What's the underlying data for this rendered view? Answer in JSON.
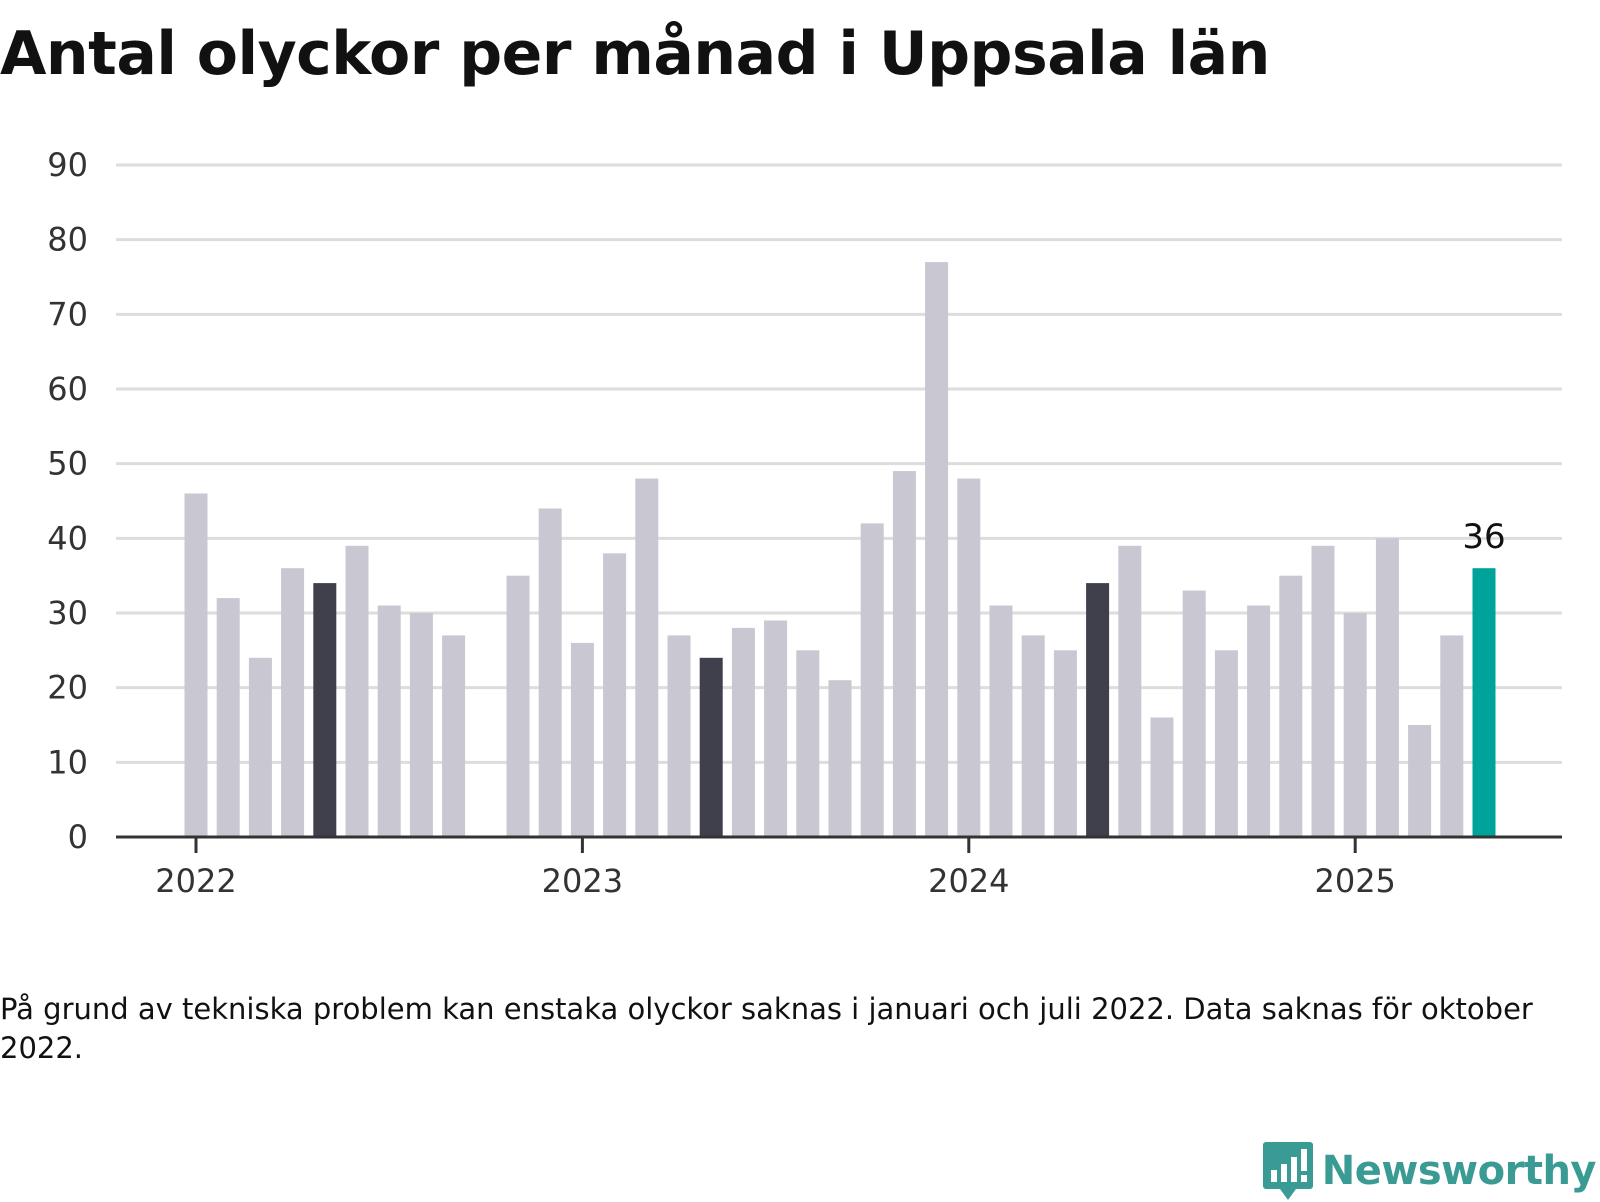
{
  "title": "Antal olyckor per månad i Uppsala län",
  "footnote": "På grund av tekniska problem kan enstaka olyckor saknas i januari och juli 2022. Data saknas för oktober 2022.",
  "brand": {
    "name": "Newsworthy",
    "icon": "bar-chart-speech-bubble-icon"
  },
  "colors": {
    "bar_default": "#c8c7d2",
    "bar_highlight": "#403f4c",
    "bar_latest": "#00a39a",
    "gridline": "#dddddd",
    "axis": "#333333",
    "brand": "#3a9a94"
  },
  "chart_data": {
    "type": "bar",
    "title": "Antal olyckor per månad i Uppsala län",
    "xlabel": "",
    "ylabel": "",
    "ylim": [
      0,
      90
    ],
    "yticks": [
      0,
      10,
      20,
      30,
      40,
      50,
      60,
      70,
      80,
      90
    ],
    "xticks": [
      "2022",
      "2023",
      "2024",
      "2025"
    ],
    "grid": true,
    "legend": "none",
    "categories": [
      "2022-01",
      "2022-02",
      "2022-03",
      "2022-04",
      "2022-05",
      "2022-06",
      "2022-07",
      "2022-08",
      "2022-09",
      "2022-10",
      "2022-11",
      "2022-12",
      "2023-01",
      "2023-02",
      "2023-03",
      "2023-04",
      "2023-05",
      "2023-06",
      "2023-07",
      "2023-08",
      "2023-09",
      "2023-10",
      "2023-11",
      "2023-12",
      "2024-01",
      "2024-02",
      "2024-03",
      "2024-04",
      "2024-05",
      "2024-06",
      "2024-07",
      "2024-08",
      "2024-09",
      "2024-10",
      "2024-11",
      "2024-12",
      "2025-01",
      "2025-02",
      "2025-03",
      "2025-04",
      "2025-05"
    ],
    "values": [
      46,
      32,
      24,
      36,
      34,
      39,
      31,
      30,
      27,
      null,
      35,
      44,
      26,
      38,
      48,
      27,
      24,
      28,
      29,
      25,
      21,
      42,
      49,
      77,
      48,
      31,
      27,
      25,
      34,
      39,
      16,
      33,
      25,
      31,
      35,
      39,
      30,
      40,
      15,
      27,
      36
    ],
    "highlight_dark": [
      "2022-05",
      "2023-05",
      "2024-05"
    ],
    "highlight_latest": "2025-05",
    "annotations": [
      {
        "category": "2025-05",
        "text": "36"
      }
    ]
  }
}
